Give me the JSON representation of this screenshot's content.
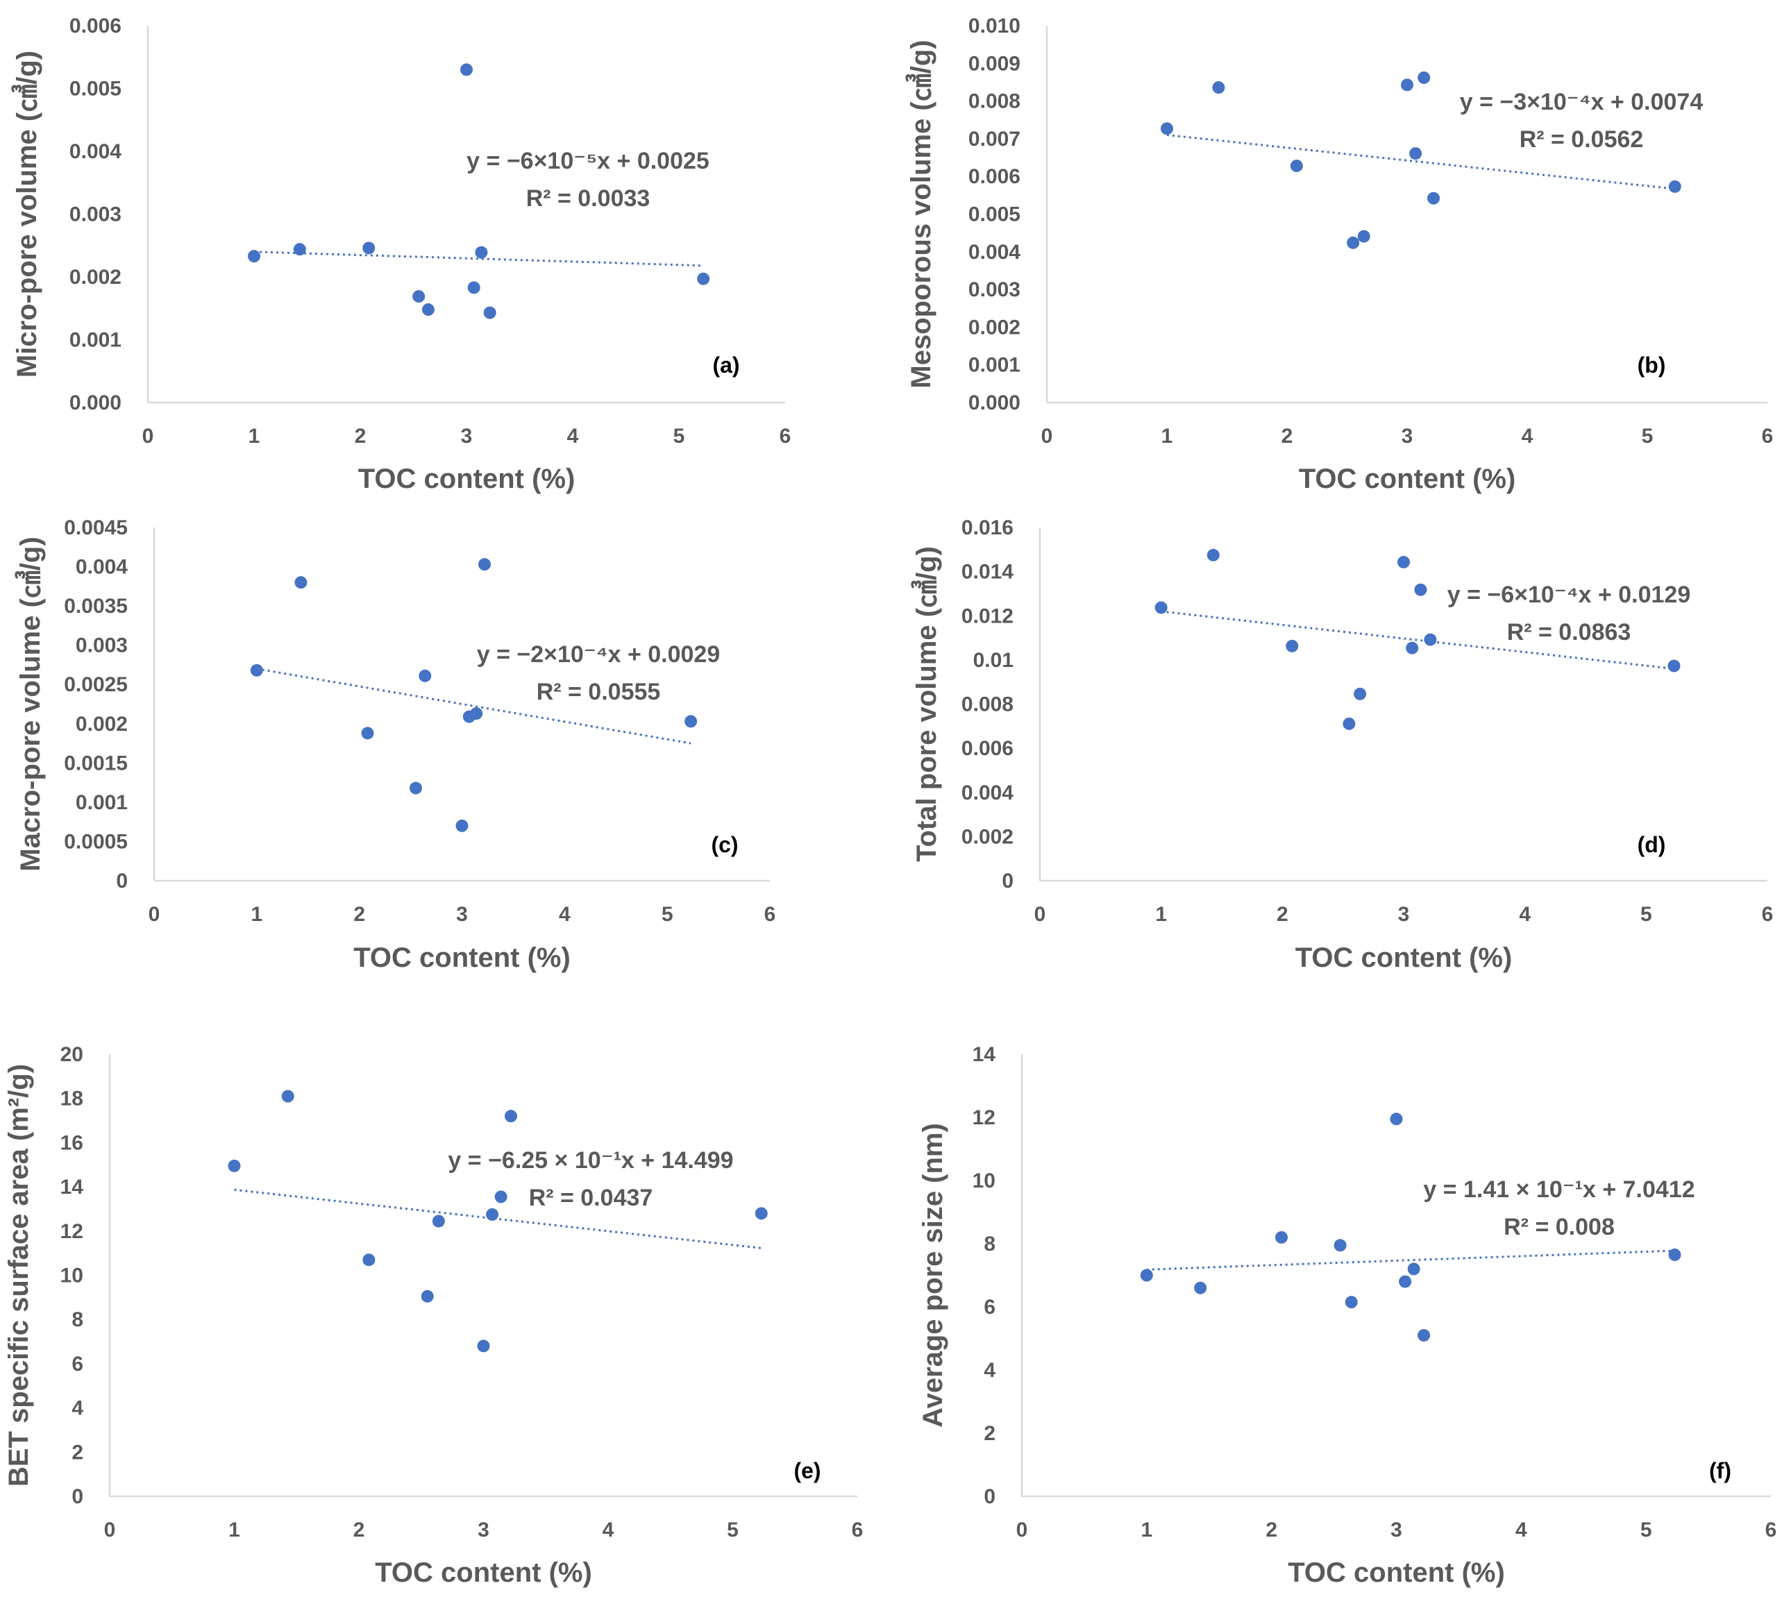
{
  "chart_data": [
    {
      "id": "a",
      "type": "scatter",
      "panel_label": "(a)",
      "xlabel": "TOC  content (%)",
      "ylabel": "Micro-pore volume (㎤/g)",
      "xlim": [
        0,
        6
      ],
      "ylim": [
        0,
        0.006
      ],
      "xticks": [
        "0",
        "1",
        "2",
        "3",
        "4",
        "5",
        "6"
      ],
      "yticks": [
        "0.000",
        "0.001",
        "0.002",
        "0.003",
        "0.004",
        "0.005",
        "0.006"
      ],
      "points": [
        [
          1.0,
          0.00233
        ],
        [
          1.43,
          0.00244
        ],
        [
          2.08,
          0.00246
        ],
        [
          2.55,
          0.00169
        ],
        [
          2.64,
          0.00148
        ],
        [
          3.0,
          0.0053
        ],
        [
          3.07,
          0.00183
        ],
        [
          3.14,
          0.00239
        ],
        [
          3.22,
          0.00143
        ],
        [
          5.23,
          0.00197
        ]
      ],
      "trendline": {
        "x": [
          1.0,
          5.23
        ],
        "y": [
          0.0024,
          0.00218
        ]
      },
      "equation": "y = −6×10⁻⁵x + 0.0025",
      "r2": "R² = 0.0033"
    },
    {
      "id": "b",
      "type": "scatter",
      "panel_label": "(b)",
      "xlabel": "TOC  content (%)",
      "ylabel": "Mesoporous volume (㎤/g)",
      "xlim": [
        0,
        6
      ],
      "ylim": [
        0,
        0.01
      ],
      "xticks": [
        "0",
        "1",
        "2",
        "3",
        "4",
        "5",
        "6"
      ],
      "yticks": [
        "0.000",
        "0.001",
        "0.002",
        "0.003",
        "0.004",
        "0.005",
        "0.006",
        "0.007",
        "0.008",
        "0.009",
        "0.010"
      ],
      "points": [
        [
          1.0,
          0.00727
        ],
        [
          1.43,
          0.00836
        ],
        [
          2.08,
          0.00628
        ],
        [
          2.55,
          0.00424
        ],
        [
          2.64,
          0.00441
        ],
        [
          3.0,
          0.00843
        ],
        [
          3.07,
          0.00661
        ],
        [
          3.14,
          0.00862
        ],
        [
          3.22,
          0.00542
        ],
        [
          5.23,
          0.00573
        ]
      ],
      "trendline": {
        "x": [
          1.0,
          5.23
        ],
        "y": [
          0.0071,
          0.00567
        ]
      },
      "equation": "y = −3×10⁻⁴x + 0.0074",
      "r2": "R² = 0.0562"
    },
    {
      "id": "c",
      "type": "scatter",
      "panel_label": "(c)",
      "xlabel": "TOC  content (%)",
      "ylabel": "Macro-pore volume (㎤/g)",
      "xlim": [
        0,
        6
      ],
      "ylim": [
        0,
        0.0045
      ],
      "xticks": [
        "0",
        "1",
        "2",
        "3",
        "4",
        "5",
        "6"
      ],
      "yticks": [
        "0",
        "0.0005",
        "0.001",
        "0.0015",
        "0.002",
        "0.0025",
        "0.003",
        "0.0035",
        "0.004",
        "0.0045"
      ],
      "points": [
        [
          1.0,
          0.00268
        ],
        [
          1.43,
          0.0038
        ],
        [
          2.08,
          0.00188
        ],
        [
          2.55,
          0.00118
        ],
        [
          2.64,
          0.00261
        ],
        [
          3.0,
          0.0007
        ],
        [
          3.07,
          0.00209
        ],
        [
          3.14,
          0.00213
        ],
        [
          3.22,
          0.00403
        ],
        [
          5.23,
          0.00203
        ]
      ],
      "trendline": {
        "x": [
          1.0,
          5.23
        ],
        "y": [
          0.0027,
          0.00175
        ]
      },
      "equation": "y = −2×10⁻⁴x + 0.0029",
      "r2": "R² = 0.0555"
    },
    {
      "id": "d",
      "type": "scatter",
      "panel_label": "(d)",
      "xlabel": "TOC  content (%)",
      "ylabel": "Total pore volume (㎤/g)",
      "xlim": [
        0,
        6
      ],
      "ylim": [
        0,
        0.016
      ],
      "xticks": [
        "0",
        "1",
        "2",
        "3",
        "4",
        "5",
        "6"
      ],
      "yticks": [
        "0",
        "0.002",
        "0.004",
        "0.006",
        "0.008",
        "0.01",
        "0.012",
        "0.014",
        "0.016"
      ],
      "points": [
        [
          1.0,
          0.01237
        ],
        [
          1.43,
          0.01475
        ],
        [
          2.08,
          0.01063
        ],
        [
          2.55,
          0.00711
        ],
        [
          2.64,
          0.00846
        ],
        [
          3.0,
          0.01443
        ],
        [
          3.07,
          0.01054
        ],
        [
          3.14,
          0.01318
        ],
        [
          3.22,
          0.01092
        ],
        [
          5.23,
          0.00973
        ]
      ],
      "trendline": {
        "x": [
          1.0,
          5.23
        ],
        "y": [
          0.0122,
          0.0096
        ]
      },
      "equation": "y = −6×10⁻⁴x + 0.0129",
      "r2": "R² = 0.0863"
    },
    {
      "id": "e",
      "type": "scatter",
      "panel_label": "(e)",
      "xlabel": "TOC  content (%)",
      "ylabel": "BET specific surface area (m²/g)",
      "xlim": [
        0,
        6
      ],
      "ylim": [
        0,
        20
      ],
      "xticks": [
        "0",
        "1",
        "2",
        "3",
        "4",
        "5",
        "6"
      ],
      "yticks": [
        "0",
        "2",
        "4",
        "6",
        "8",
        "10",
        "12",
        "14",
        "16",
        "18",
        "20"
      ],
      "points": [
        [
          1.0,
          14.95
        ],
        [
          1.43,
          18.1
        ],
        [
          2.08,
          10.7
        ],
        [
          2.55,
          9.05
        ],
        [
          2.64,
          12.45
        ],
        [
          3.0,
          6.8
        ],
        [
          3.07,
          12.75
        ],
        [
          3.14,
          13.55
        ],
        [
          3.22,
          17.2
        ],
        [
          5.23,
          12.8
        ]
      ],
      "trendline": {
        "x": [
          1.0,
          5.23
        ],
        "y": [
          13.87,
          11.23
        ]
      },
      "equation": "y = −6.25 × 10⁻¹x + 14.499",
      "r2": "R² = 0.0437"
    },
    {
      "id": "f",
      "type": "scatter",
      "panel_label": "(f)",
      "xlabel": "TOC  content (%)",
      "ylabel": "Average pore size (nm)",
      "xlim": [
        0,
        6
      ],
      "ylim": [
        0,
        14
      ],
      "xticks": [
        "0",
        "1",
        "2",
        "3",
        "4",
        "5",
        "6"
      ],
      "yticks": [
        "0",
        "2",
        "4",
        "6",
        "8",
        "10",
        "12",
        "14"
      ],
      "points": [
        [
          1.0,
          7.0
        ],
        [
          1.43,
          6.6
        ],
        [
          2.08,
          8.2
        ],
        [
          2.55,
          7.95
        ],
        [
          2.64,
          6.15
        ],
        [
          3.0,
          11.95
        ],
        [
          3.07,
          6.8
        ],
        [
          3.14,
          7.2
        ],
        [
          3.22,
          5.1
        ],
        [
          5.23,
          7.65
        ]
      ],
      "trendline": {
        "x": [
          1.0,
          5.23
        ],
        "y": [
          7.18,
          7.78
        ]
      },
      "equation": "y = 1.41 × 10⁻¹x + 7.0412",
      "r2": "R² = 0.008"
    }
  ]
}
